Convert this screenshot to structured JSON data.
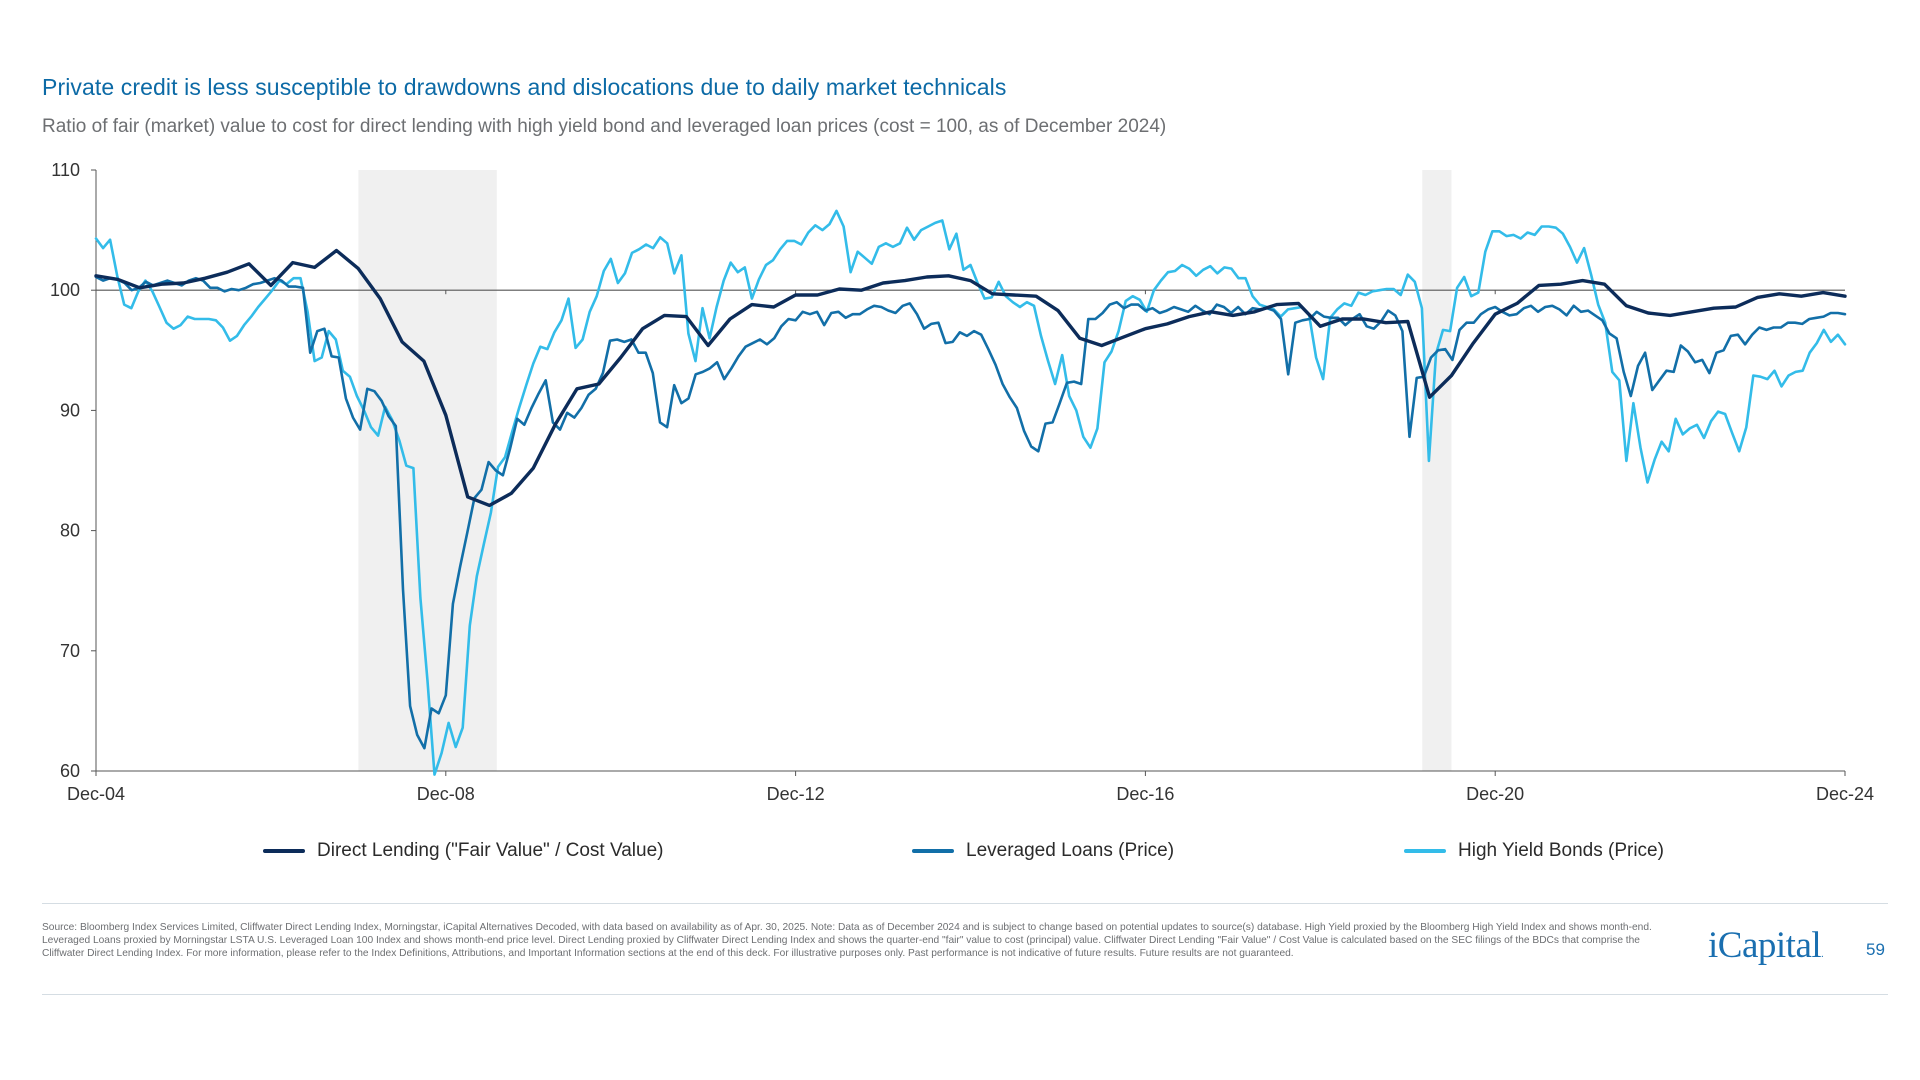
{
  "title": "Private credit is less susceptible to drawdowns and dislocations due to daily market technicals",
  "subtitle": "Ratio of fair (market) value to cost for direct lending with high yield bond and leveraged loan prices (cost = 100, as of December 2024)",
  "legend": [
    {
      "label": "Direct Lending (\"Fair Value\" / Cost Value)",
      "color": "#0c2c5a"
    },
    {
      "label": "Leveraged Loans (Price)",
      "color": "#126fa8"
    },
    {
      "label": "High Yield Bonds (Price)",
      "color": "#33bce9"
    }
  ],
  "footnote": "Source: Bloomberg Index Services Limited, Cliffwater Direct Lending Index, Morningstar, iCapital Alternatives Decoded, with data based on availability as of Apr. 30, 2025. Note: Data as of December 2024 and is subject to change based on potential updates to source(s) database. High Yield proxied by the Bloomberg High Yield Index and shows month-end. Leveraged Loans proxied by Morningstar LSTA U.S. Leveraged Loan 100 Index and shows month-end price level. Direct Lending proxied by Cliffwater Direct Lending Index and shows the quarter-end \"fair\" value to cost (principal) value. Cliffwater Direct Lending \"Fair Value\" / Cost Value is calculated based on the SEC filings of the BDCs that comprise the Cliffwater Direct Lending Index. For more information, please refer to the Index Definitions, Attributions, and Important Information sections at the end of this deck. For illustrative purposes only. Past performance is not indicative of future results. Future results are not guaranteed.",
  "logo": "iCapital",
  "logo_mark": ".",
  "page_number": "59",
  "chart_data": {
    "type": "line",
    "xlim": [
      2004.917,
      2024.917
    ],
    "ylim": [
      60,
      110
    ],
    "yticks": [
      60,
      70,
      80,
      90,
      100,
      110
    ],
    "xticks": [
      {
        "x": 2004.917,
        "label": "Dec-04"
      },
      {
        "x": 2008.917,
        "label": "Dec-08"
      },
      {
        "x": 2012.917,
        "label": "Dec-12"
      },
      {
        "x": 2016.917,
        "label": "Dec-16"
      },
      {
        "x": 2020.917,
        "label": "Dec-20"
      },
      {
        "x": 2024.917,
        "label": "Dec-24"
      }
    ],
    "reference_line": 100,
    "shaded_periods": [
      {
        "start": 2007.917,
        "end": 2009.5
      },
      {
        "start": 2020.083,
        "end": 2020.417
      }
    ],
    "grid": false,
    "legend_position": "bottom",
    "series": [
      {
        "name": "Direct Lending (\"Fair Value\" / Cost Value)",
        "color": "#0c2c5a",
        "points": [
          [
            2004.917,
            101.2
          ],
          [
            2005.167,
            100.9
          ],
          [
            2005.417,
            100.2
          ],
          [
            2005.667,
            100.5
          ],
          [
            2005.917,
            100.6
          ],
          [
            2006.167,
            101.0
          ],
          [
            2006.417,
            101.5
          ],
          [
            2006.667,
            102.2
          ],
          [
            2006.917,
            100.4
          ],
          [
            2007.167,
            102.3
          ],
          [
            2007.417,
            101.9
          ],
          [
            2007.667,
            103.3
          ],
          [
            2007.917,
            101.8
          ],
          [
            2008.167,
            99.3
          ],
          [
            2008.417,
            95.7
          ],
          [
            2008.667,
            94.1
          ],
          [
            2008.917,
            89.6
          ],
          [
            2009.167,
            82.8
          ],
          [
            2009.417,
            82.1
          ],
          [
            2009.667,
            83.1
          ],
          [
            2009.917,
            85.2
          ],
          [
            2010.167,
            88.8
          ],
          [
            2010.417,
            91.8
          ],
          [
            2010.667,
            92.2
          ],
          [
            2010.917,
            94.4
          ],
          [
            2011.167,
            96.8
          ],
          [
            2011.417,
            97.9
          ],
          [
            2011.667,
            97.8
          ],
          [
            2011.917,
            95.4
          ],
          [
            2012.167,
            97.6
          ],
          [
            2012.417,
            98.8
          ],
          [
            2012.667,
            98.6
          ],
          [
            2012.917,
            99.6
          ],
          [
            2013.167,
            99.6
          ],
          [
            2013.417,
            100.1
          ],
          [
            2013.667,
            100.0
          ],
          [
            2013.917,
            100.6
          ],
          [
            2014.167,
            100.8
          ],
          [
            2014.417,
            101.1
          ],
          [
            2014.667,
            101.2
          ],
          [
            2014.917,
            100.8
          ],
          [
            2015.167,
            99.7
          ],
          [
            2015.417,
            99.6
          ],
          [
            2015.667,
            99.5
          ],
          [
            2015.917,
            98.3
          ],
          [
            2016.167,
            96.0
          ],
          [
            2016.417,
            95.4
          ],
          [
            2016.667,
            96.1
          ],
          [
            2016.917,
            96.8
          ],
          [
            2017.167,
            97.2
          ],
          [
            2017.417,
            97.8
          ],
          [
            2017.667,
            98.2
          ],
          [
            2017.917,
            97.9
          ],
          [
            2018.167,
            98.2
          ],
          [
            2018.417,
            98.8
          ],
          [
            2018.667,
            98.9
          ],
          [
            2018.917,
            97.0
          ],
          [
            2019.167,
            97.6
          ],
          [
            2019.417,
            97.6
          ],
          [
            2019.667,
            97.3
          ],
          [
            2019.917,
            97.4
          ],
          [
            2020.167,
            91.1
          ],
          [
            2020.417,
            92.9
          ],
          [
            2020.667,
            95.6
          ],
          [
            2020.917,
            98.0
          ],
          [
            2021.167,
            98.9
          ],
          [
            2021.417,
            100.4
          ],
          [
            2021.667,
            100.5
          ],
          [
            2021.917,
            100.8
          ],
          [
            2022.167,
            100.5
          ],
          [
            2022.417,
            98.7
          ],
          [
            2022.667,
            98.1
          ],
          [
            2022.917,
            97.9
          ],
          [
            2023.167,
            98.2
          ],
          [
            2023.417,
            98.5
          ],
          [
            2023.667,
            98.6
          ],
          [
            2023.917,
            99.4
          ],
          [
            2024.167,
            99.7
          ],
          [
            2024.417,
            99.5
          ],
          [
            2024.667,
            99.8
          ],
          [
            2024.917,
            99.5
          ]
        ]
      },
      {
        "name": "Leveraged Loans (Price)",
        "color": "#126fa8",
        "values": [
          101.1,
          100.8,
          101.0,
          100.9,
          100.6,
          100.0,
          100.2,
          100.7,
          100.4,
          100.6,
          100.8,
          100.6,
          100.4,
          100.8,
          101.0,
          100.8,
          100.2,
          100.2,
          99.9,
          100.1,
          100.0,
          100.2,
          100.5,
          100.6,
          100.8,
          101.0,
          100.8,
          100.3,
          100.3,
          100.2,
          94.8,
          96.6,
          96.8,
          94.5,
          94.4,
          91.0,
          89.4,
          88.4,
          91.8,
          91.6,
          90.8,
          89.5,
          88.7,
          75.1,
          65.4,
          63.0,
          61.9,
          65.2,
          64.8,
          66.3,
          73.9,
          77.0,
          79.8,
          82.7,
          83.4,
          85.7,
          85.0,
          84.6,
          86.8,
          89.3,
          88.8,
          90.2,
          91.4,
          92.5,
          89.0,
          88.4,
          89.8,
          89.4,
          90.2,
          91.3,
          91.8,
          93.1,
          95.8,
          95.9,
          95.7,
          95.9,
          94.8,
          94.8,
          93.1,
          89.0,
          88.6,
          92.1,
          90.6,
          91.0,
          93.0,
          93.2,
          93.5,
          94.0,
          92.6,
          93.5,
          94.5,
          95.3,
          95.6,
          95.9,
          95.5,
          96.0,
          97.0,
          97.6,
          97.5,
          98.2,
          98.0,
          98.2,
          97.1,
          98.1,
          98.2,
          97.7,
          98.0,
          98.0,
          98.4,
          98.7,
          98.6,
          98.3,
          98.1,
          98.7,
          98.9,
          98.0,
          96.8,
          97.2,
          97.3,
          95.6,
          95.7,
          96.5,
          96.2,
          96.6,
          96.3,
          95.1,
          93.8,
          92.2,
          91.1,
          90.2,
          88.3,
          87.0,
          86.6,
          88.9,
          89.0,
          90.6,
          92.3,
          92.4,
          92.2,
          97.6,
          97.6,
          98.1,
          98.8,
          99.0,
          98.5,
          98.8,
          98.8,
          98.3,
          98.5,
          98.1,
          98.3,
          98.6,
          98.4,
          98.2,
          98.7,
          98.3,
          98.0,
          98.8,
          98.6,
          98.1,
          98.6,
          98.0,
          98.5,
          98.4,
          98.5,
          98.3,
          97.6,
          93.0,
          97.3,
          97.5,
          97.6,
          98.2,
          97.8,
          97.7,
          97.7,
          97.1,
          97.6,
          98.0,
          97.0,
          96.8,
          97.4,
          98.3,
          97.9,
          96.6,
          87.8,
          92.7,
          92.8,
          94.4,
          95.0,
          95.1,
          94.2,
          96.7,
          97.3,
          97.3,
          98.0,
          98.4,
          98.6,
          98.2,
          97.9,
          98.0,
          98.5,
          98.7,
          98.2,
          98.6,
          98.7,
          98.4,
          97.9,
          98.7,
          98.2,
          98.3,
          97.9,
          97.5,
          96.4,
          96.0,
          93.2,
          91.2,
          93.7,
          94.8,
          91.7,
          92.5,
          93.3,
          93.2,
          95.4,
          94.9,
          94.0,
          94.2,
          93.1,
          94.8,
          95.0,
          96.2,
          96.3,
          95.5,
          96.3,
          96.9,
          96.7,
          96.9,
          96.9,
          97.3,
          97.3,
          97.2,
          97.6,
          97.7,
          97.8,
          98.1,
          98.1,
          98.0
        ]
      },
      {
        "name": "High Yield Bonds (Price)",
        "color": "#33bce9",
        "values": [
          104.3,
          103.5,
          104.2,
          101.2,
          98.8,
          98.5,
          99.9,
          100.8,
          99.9,
          98.6,
          97.3,
          96.8,
          97.1,
          97.8,
          97.6,
          97.6,
          97.6,
          97.5,
          96.9,
          95.8,
          96.2,
          97.1,
          97.8,
          98.6,
          99.3,
          100.0,
          100.8,
          100.5,
          101.0,
          101.0,
          98.2,
          94.1,
          94.4,
          96.6,
          95.9,
          93.3,
          92.8,
          91.2,
          90.0,
          88.6,
          87.9,
          90.3,
          89.2,
          87.5,
          85.4,
          85.2,
          74.4,
          67.5,
          59.7,
          61.5,
          64.0,
          62.0,
          63.6,
          72.1,
          76.2,
          78.9,
          81.5,
          85.3,
          86.1,
          88.2,
          90.2,
          92.1,
          93.9,
          95.3,
          95.1,
          96.5,
          97.5,
          99.3,
          95.2,
          95.9,
          98.2,
          99.5,
          101.6,
          102.6,
          100.6,
          101.4,
          103.1,
          103.4,
          103.8,
          103.5,
          104.4,
          103.9,
          101.4,
          102.9,
          96.4,
          94.1,
          98.5,
          96.0,
          98.6,
          100.8,
          102.3,
          101.5,
          101.9,
          99.3,
          100.9,
          102.1,
          102.5,
          103.4,
          104.1,
          104.1,
          103.8,
          104.8,
          105.4,
          105.0,
          105.5,
          106.6,
          105.3,
          101.5,
          103.2,
          102.7,
          102.2,
          103.6,
          103.9,
          103.6,
          103.9,
          105.2,
          104.2,
          105.0,
          105.3,
          105.6,
          105.8,
          103.4,
          104.7,
          101.7,
          102.1,
          100.6,
          99.3,
          99.4,
          100.7,
          99.5,
          99.0,
          98.6,
          99.0,
          98.7,
          96.2,
          94.1,
          92.2,
          94.6,
          91.2,
          90.0,
          87.8,
          86.9,
          88.5,
          94.0,
          94.9,
          96.6,
          99.1,
          99.5,
          99.2,
          98.2,
          100.0,
          100.8,
          101.5,
          101.6,
          102.1,
          101.8,
          101.2,
          101.7,
          102.0,
          101.4,
          101.9,
          101.8,
          101.0,
          101.0,
          99.5,
          98.8,
          98.6,
          98.4,
          97.8,
          98.4,
          98.5,
          98.6,
          98.0,
          94.4,
          92.6,
          97.7,
          98.4,
          98.9,
          98.7,
          99.8,
          99.6,
          99.9,
          100.0,
          100.1,
          100.1,
          99.6,
          101.3,
          100.7,
          98.5,
          85.8,
          94.7,
          96.7,
          96.6,
          100.2,
          101.1,
          99.5,
          99.8,
          103.2,
          104.9,
          104.9,
          104.5,
          104.6,
          104.3,
          104.8,
          104.6,
          105.3,
          105.3,
          105.2,
          104.7,
          103.6,
          102.3,
          103.5,
          101.3,
          98.8,
          97.3,
          93.2,
          92.5,
          85.8,
          90.6,
          86.9,
          84.0,
          85.9,
          87.4,
          86.6,
          89.3,
          88.0,
          88.5,
          88.8,
          87.7,
          89.1,
          89.9,
          89.7,
          88.1,
          86.6,
          88.6,
          92.9,
          92.8,
          92.6,
          93.3,
          92.0,
          92.9,
          93.2,
          93.3,
          94.8,
          95.6,
          96.7,
          95.7,
          96.3,
          95.5
        ]
      }
    ]
  }
}
